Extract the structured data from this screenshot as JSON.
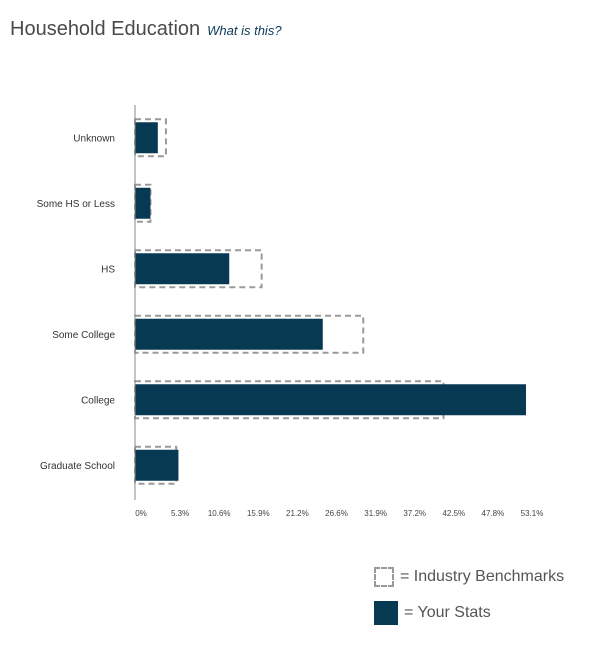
{
  "header": {
    "title": "Household Education",
    "help_link": "What is this?"
  },
  "legend": {
    "benchmark_label": "= Industry Benchmarks",
    "stats_label": "= Your Stats"
  },
  "colors": {
    "stats_fill": "#073a52",
    "benchmark_stroke": "#9a9a9a",
    "axis": "#888888"
  },
  "chart_data": {
    "type": "bar",
    "orientation": "horizontal",
    "categories": [
      "Unknown",
      "Some HS or Less",
      "HS",
      "Some College",
      "College",
      "Graduate School"
    ],
    "series": [
      {
        "name": "Your Stats",
        "style": "solid",
        "values": [
          3.1,
          2.1,
          12.8,
          25.5,
          53.1,
          5.9
        ]
      },
      {
        "name": "Industry Benchmarks",
        "style": "dashed-outline",
        "values": [
          4.2,
          2.1,
          17.2,
          31.0,
          41.9,
          5.6
        ]
      }
    ],
    "x_ticks": [
      "0%",
      "5.3%",
      "10.6%",
      "15.9%",
      "21.2%",
      "26.6%",
      "31.9%",
      "37.2%",
      "42.5%",
      "47.8%",
      "53.1%"
    ],
    "xlim": [
      0,
      53.1
    ],
    "grid": false,
    "legend_position": "bottom-right"
  }
}
